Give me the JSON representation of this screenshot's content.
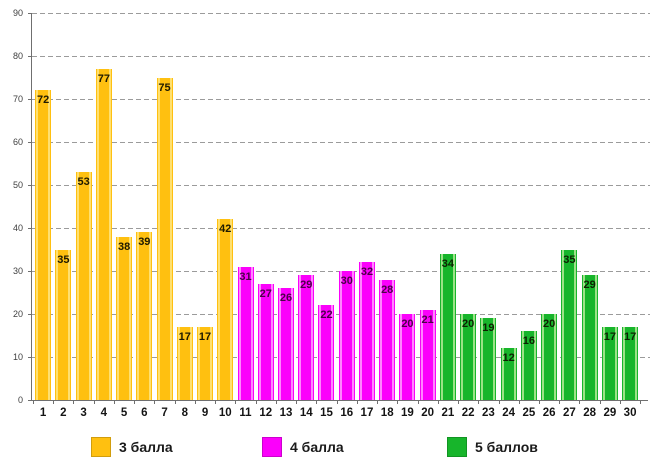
{
  "chart_data": {
    "type": "bar",
    "categories": [
      1,
      2,
      3,
      4,
      5,
      6,
      7,
      8,
      9,
      10,
      11,
      12,
      13,
      14,
      15,
      16,
      17,
      18,
      19,
      20,
      21,
      22,
      23,
      24,
      25,
      26,
      27,
      28,
      29,
      30
    ],
    "series": [
      {
        "name": "3 балла",
        "color": "#FFC010",
        "edge_highlight": "#FFE070",
        "label_color": "#1f1a00",
        "category_range": [
          1,
          10
        ],
        "values": [
          72,
          35,
          53,
          77,
          38,
          39,
          75,
          17,
          17,
          42
        ]
      },
      {
        "name": "4 балла",
        "color": "#FB00FB",
        "edge_highlight": "#FF86FF",
        "label_color": "#4b0147",
        "category_range": [
          11,
          20
        ],
        "values": [
          31,
          27,
          26,
          29,
          22,
          30,
          32,
          28,
          20,
          21
        ]
      },
      {
        "name": "5 баллов",
        "color": "#17B52B",
        "edge_highlight": "#9CE387",
        "label_color": "#0c2100",
        "category_range": [
          21,
          30
        ],
        "values": [
          34,
          20,
          19,
          12,
          16,
          20,
          35,
          29,
          17,
          17
        ]
      }
    ],
    "ylim": [
      0,
      90
    ],
    "ytick_step": 10,
    "yticks": [
      0,
      10,
      20,
      30,
      40,
      50,
      60,
      70,
      80,
      90
    ],
    "xlabel": "",
    "ylabel": "",
    "grid": "horizontal-dashed",
    "legend_position": "bottom",
    "grid_color": "#9B9B9B",
    "axis_color": "#6F6F6F",
    "ytick_label_color": "#3F3F3F",
    "xtick_label_color": "#141414"
  }
}
